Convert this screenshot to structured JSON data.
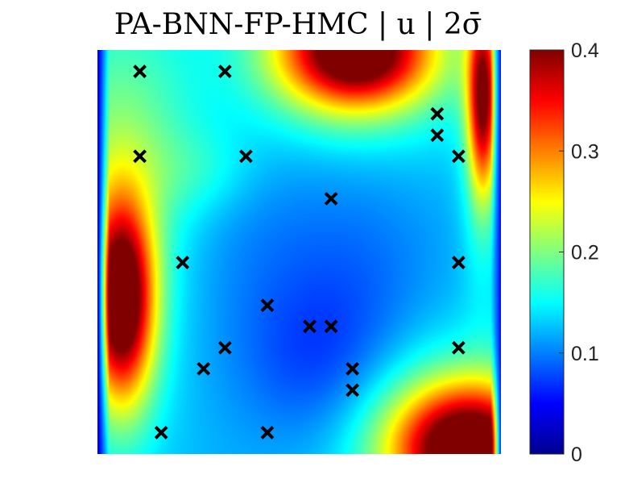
{
  "chart_data": {
    "type": "heatmap",
    "title": "PA-BNN-FP-HMC | u | 2σ̄",
    "colormap": "jet",
    "colorbar": {
      "min": 0,
      "max": 0.4,
      "ticks": [
        0,
        0.1,
        0.2,
        0.3,
        0.4
      ],
      "tick_labels": [
        "0",
        "0.1",
        "0.2",
        "0.3",
        "0.4"
      ]
    },
    "xlim": [
      0,
      1
    ],
    "ylim": [
      0,
      1
    ],
    "axes_visible": false,
    "markers": {
      "symbol": "x",
      "color": "#000000",
      "points": [
        {
          "x": 0.105,
          "y": 0.947
        },
        {
          "x": 0.316,
          "y": 0.947
        },
        {
          "x": 0.842,
          "y": 0.842
        },
        {
          "x": 0.842,
          "y": 0.789
        },
        {
          "x": 0.105,
          "y": 0.737
        },
        {
          "x": 0.368,
          "y": 0.737
        },
        {
          "x": 0.895,
          "y": 0.737
        },
        {
          "x": 0.579,
          "y": 0.632
        },
        {
          "x": 0.211,
          "y": 0.474
        },
        {
          "x": 0.895,
          "y": 0.474
        },
        {
          "x": 0.421,
          "y": 0.368
        },
        {
          "x": 0.526,
          "y": 0.316
        },
        {
          "x": 0.579,
          "y": 0.316
        },
        {
          "x": 0.316,
          "y": 0.263
        },
        {
          "x": 0.895,
          "y": 0.263
        },
        {
          "x": 0.263,
          "y": 0.211
        },
        {
          "x": 0.632,
          "y": 0.211
        },
        {
          "x": 0.632,
          "y": 0.158
        },
        {
          "x": 0.158,
          "y": 0.053
        },
        {
          "x": 0.421,
          "y": 0.053
        }
      ]
    },
    "field": {
      "base": 0.12,
      "blobs": [
        {
          "x": 0.06,
          "y": 0.38,
          "sx": 0.055,
          "sy": 0.17,
          "a": 0.3
        },
        {
          "x": 0.06,
          "y": 0.38,
          "sx": 0.1,
          "sy": 0.3,
          "a": 0.05
        },
        {
          "x": 0.64,
          "y": 1.0,
          "sx": 0.13,
          "sy": 0.1,
          "a": 0.31
        },
        {
          "x": 0.64,
          "y": 0.97,
          "sx": 0.25,
          "sy": 0.17,
          "a": 0.05
        },
        {
          "x": 0.92,
          "y": 0.01,
          "sx": 0.13,
          "sy": 0.11,
          "a": 0.31
        },
        {
          "x": 0.86,
          "y": 0.06,
          "sx": 0.22,
          "sy": 0.17,
          "a": 0.06
        },
        {
          "x": 0.955,
          "y": 0.88,
          "sx": 0.025,
          "sy": 0.16,
          "a": 0.23
        },
        {
          "x": 0.955,
          "y": 0.82,
          "sx": 0.04,
          "sy": 0.3,
          "a": 0.05
        },
        {
          "x": 0.05,
          "y": 0.8,
          "sx": 0.14,
          "sy": 0.25,
          "a": 0.06
        },
        {
          "x": 0.25,
          "y": 0.7,
          "sx": 0.1,
          "sy": 0.08,
          "a": 0.03
        },
        {
          "x": 0.55,
          "y": 0.22,
          "sx": 0.14,
          "sy": 0.16,
          "a": -0.05
        },
        {
          "x": 0.45,
          "y": 0.55,
          "sx": 0.18,
          "sy": 0.2,
          "a": -0.02
        },
        {
          "x": 0.7,
          "y": 0.45,
          "sx": 0.12,
          "sy": 0.2,
          "a": -0.015
        }
      ],
      "edges": {
        "left": {
          "width": 0.03,
          "value": 0.03
        },
        "right": {
          "width": 0.025,
          "value": 0.05
        }
      }
    }
  }
}
